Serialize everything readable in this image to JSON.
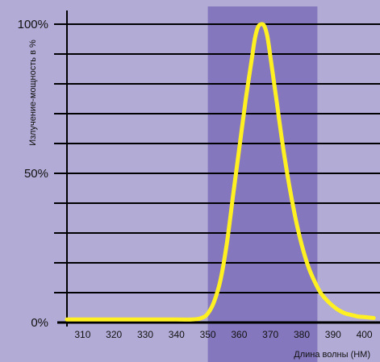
{
  "chart_data": {
    "type": "line",
    "title": "",
    "xlabel": "Длина волны (НМ)",
    "ylabel": "Излучение-мощность в %",
    "xlim": [
      305,
      405
    ],
    "ylim": [
      0,
      100
    ],
    "x_ticks": [
      "310",
      "320",
      "330",
      "340",
      "350",
      "360",
      "370",
      "380",
      "390",
      "400"
    ],
    "y_tick_labels": [
      {
        "value": 100,
        "label": "100%"
      },
      {
        "value": 50,
        "label": "50%"
      },
      {
        "value": 0,
        "label": "0%"
      }
    ],
    "horizontal_gridlines": [
      0,
      10,
      20,
      30,
      40,
      50,
      60,
      70,
      80,
      90,
      100
    ],
    "highlight_band": {
      "x_start": 350,
      "x_end": 385
    },
    "colors": {
      "background": "#b2abd6",
      "highlight_band": "#8477bd",
      "curve": "#fff022",
      "gridlines": "#000000"
    },
    "series": [
      {
        "points": [
          [
            305,
            1
          ],
          [
            310,
            1
          ],
          [
            320,
            1
          ],
          [
            330,
            1
          ],
          [
            340,
            1
          ],
          [
            345,
            1
          ],
          [
            348,
            1.5
          ],
          [
            350,
            3
          ],
          [
            352,
            7
          ],
          [
            354,
            14
          ],
          [
            356,
            26
          ],
          [
            358,
            42
          ],
          [
            360,
            58
          ],
          [
            362,
            74
          ],
          [
            364,
            88
          ],
          [
            365,
            95
          ],
          [
            366,
            99
          ],
          [
            367,
            100
          ],
          [
            368,
            99.5
          ],
          [
            369,
            96
          ],
          [
            370,
            89
          ],
          [
            372,
            74
          ],
          [
            374,
            59
          ],
          [
            376,
            46
          ],
          [
            378,
            35
          ],
          [
            380,
            26
          ],
          [
            382,
            19
          ],
          [
            384,
            14
          ],
          [
            386,
            10
          ],
          [
            388,
            7.5
          ],
          [
            390,
            5.5
          ],
          [
            392,
            4
          ],
          [
            394,
            3
          ],
          [
            396,
            2.5
          ],
          [
            398,
            2
          ],
          [
            400,
            1.8
          ],
          [
            403,
            1.5
          ]
        ]
      }
    ]
  }
}
